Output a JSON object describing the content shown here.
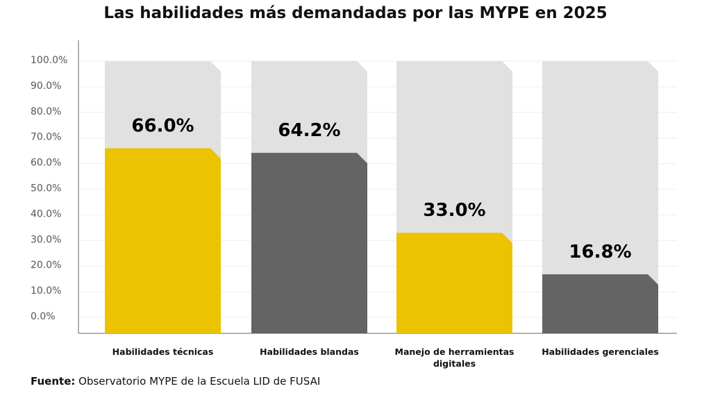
{
  "chart_data": {
    "type": "bar",
    "title": "Las habilidades más demandadas por las MYPE en 2025",
    "categories": [
      "Habilidades técnicas",
      "Habilidades blandas",
      "Manejo de herramientas digitales",
      "Habilidades gerenciales"
    ],
    "values": [
      66.0,
      64.2,
      33.0,
      16.8
    ],
    "data_labels": [
      "66.0%",
      "64.2%",
      "33.0%",
      "16.8%"
    ],
    "colors": [
      "#EBC300",
      "#646464",
      "#EBC300",
      "#646464"
    ],
    "background_bar_color": "#E1E1E1",
    "ylim": [
      0,
      100
    ],
    "yticks": [
      "0.0%",
      "10.0%",
      "20.0%",
      "30.0%",
      "40.0%",
      "50.0%",
      "60.0%",
      "70.0%",
      "80.0%",
      "90.0%",
      "100.0%"
    ],
    "grid": true,
    "xlabel": "",
    "ylabel": ""
  },
  "source": {
    "label": "Fuente:",
    "text": "Observatorio MYPE de la Escuela LID de FUSAI"
  }
}
